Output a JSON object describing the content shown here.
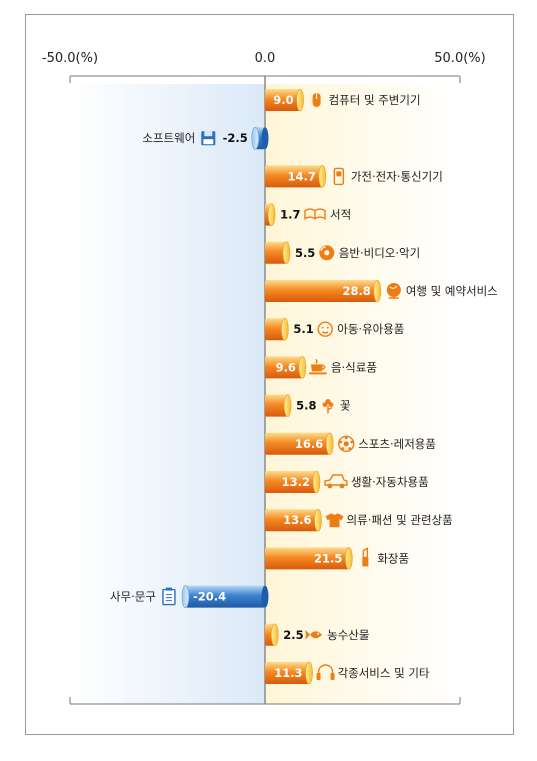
{
  "chart_data": {
    "type": "bar",
    "orientation": "horizontal",
    "xlim": [
      -50.0,
      50.0
    ],
    "x_ticks": [
      "-50.0(%)",
      "0.0",
      "50.0(%)"
    ],
    "categories": [
      "컴퓨터 및 주변기기",
      "소프트웨어",
      "가전·전자·통신기기",
      "서적",
      "음반·비디오·악기",
      "여행 및 예약서비스",
      "아동·유아용품",
      "음·식료품",
      "꽃",
      "스포츠·레저용품",
      "생활·자동차용품",
      "의류·패션 및 관련상품",
      "화장품",
      "사무·문구",
      "농수산물",
      "각종서비스 및 기타"
    ],
    "values": [
      9.0,
      -2.5,
      14.7,
      1.7,
      5.5,
      28.8,
      5.1,
      9.6,
      5.8,
      16.6,
      13.2,
      13.6,
      21.5,
      -20.4,
      2.5,
      11.3
    ],
    "value_labels": [
      "9.0",
      "-2.5",
      "14.7",
      "1.7",
      "5.5",
      "28.8",
      "5.1",
      "9.6",
      "5.8",
      "16.6",
      "13.2",
      "13.6",
      "21.5",
      "-20.4",
      "2.5",
      "11.3"
    ],
    "icons": [
      "mouse-icon",
      "floppy-disk-icon",
      "mobile-phone-icon",
      "open-book-icon",
      "compact-disc-icon",
      "globe-icon",
      "baby-face-icon",
      "coffee-cup-icon",
      "flower-icon",
      "soccer-ball-icon",
      "car-icon",
      "shirt-icon",
      "lipstick-icon",
      "clipboard-icon",
      "fish-icon",
      "headset-icon"
    ],
    "colors": {
      "positive": "#f07a1e",
      "positive_light": "#fdd080",
      "negative": "#2a6fc0",
      "negative_light": "#a9cdf0",
      "icon": "#ee7d16"
    },
    "grid": false,
    "legend": "none"
  }
}
